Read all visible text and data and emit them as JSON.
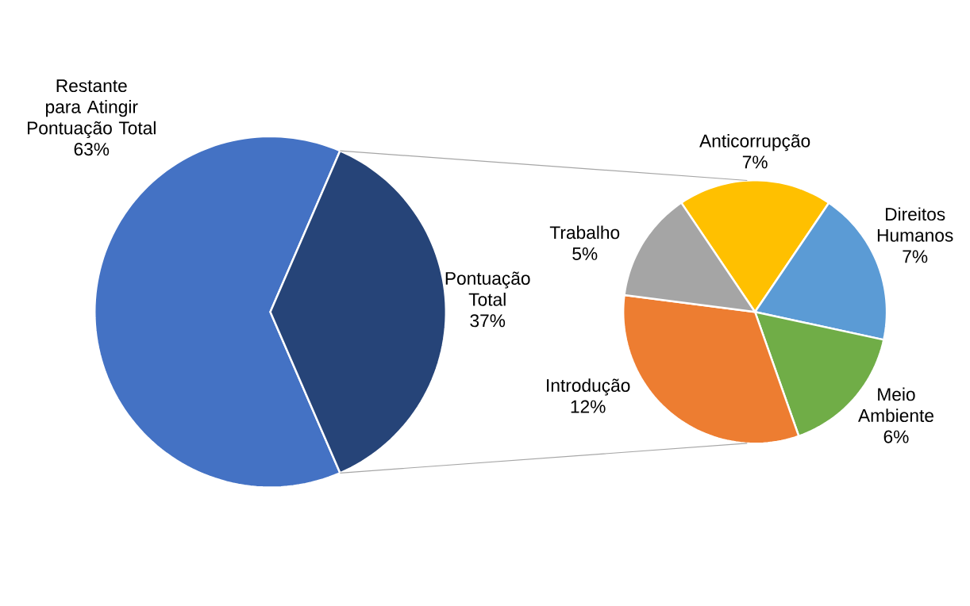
{
  "chart_data": [
    {
      "type": "pie",
      "categories": [
        "Restante para Atingir Pontuação Total",
        "Pontuação Total"
      ],
      "values": [
        63,
        37
      ],
      "colors": [
        "#4472c4",
        "#264478"
      ],
      "value_labels": [
        "63%",
        "37%"
      ]
    },
    {
      "type": "pie",
      "categories": [
        "Anticorrupção",
        "Direitos Humanos",
        "Meio Ambiente",
        "Introdução",
        "Trabalho"
      ],
      "values": [
        7,
        7,
        6,
        12,
        5
      ],
      "colors": [
        "#ffc000",
        "#5b9bd5",
        "#70ad47",
        "#ed7d31",
        "#a5a5a5"
      ],
      "value_labels": [
        "7%",
        "7%",
        "6%",
        "12%",
        "5%"
      ]
    }
  ]
}
